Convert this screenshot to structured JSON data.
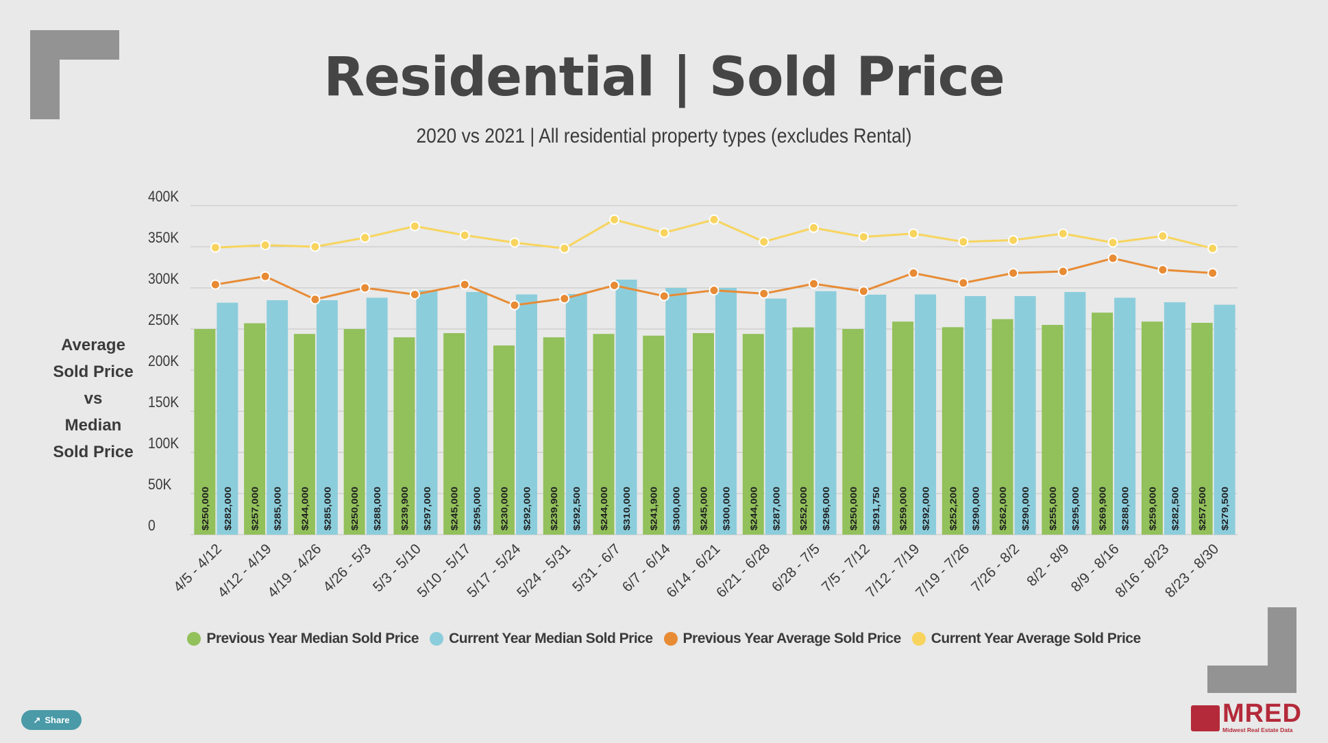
{
  "title": "Residential | Sold Price",
  "subtitle": "2020 vs 2021 | All residential property types (excludes Rental)",
  "ylabel_lines": [
    "Average",
    "Sold Price",
    "vs",
    "Median",
    "Sold Price"
  ],
  "share_label": "Share",
  "logo": {
    "text": "MRED",
    "sub": "Midwest Real Estate Data"
  },
  "icons": {
    "share": "share-icon",
    "logo": "mred-logo-icon"
  },
  "colors": {
    "prev_median": "#92c05b",
    "curr_median": "#8ccddc",
    "prev_avg": "#e88b35",
    "curr_avg": "#f8d45e",
    "background": "#e8e9e8"
  },
  "chart_data": {
    "type": "bar",
    "title": "Residential | Sold Price",
    "subtitle": "2020 vs 2021 | All residential property types (excludes Rental)",
    "ylabel": "Average Sold Price vs Median Sold Price",
    "xlabel": "",
    "ylim": [
      0,
      400000
    ],
    "ytick_values": [
      0,
      50000,
      100000,
      150000,
      200000,
      250000,
      300000,
      350000,
      400000
    ],
    "ytick_labels": [
      "0",
      "50K",
      "100K",
      "150K",
      "200K",
      "250K",
      "300K",
      "350K",
      "400K"
    ],
    "grid": true,
    "legend_position": "bottom",
    "categories": [
      "4/5 - 4/12",
      "4/12 - 4/19",
      "4/19 - 4/26",
      "4/26 - 5/3",
      "5/3 - 5/10",
      "5/10 - 5/17",
      "5/17 - 5/24",
      "5/24 - 5/31",
      "5/31 - 6/7",
      "6/7 - 6/14",
      "6/14 - 6/21",
      "6/21 - 6/28",
      "6/28 - 7/5",
      "7/5 - 7/12",
      "7/12 - 7/19",
      "7/19 - 7/26",
      "7/26 - 8/2",
      "8/2 - 8/9",
      "8/9 - 8/16",
      "8/16 - 8/23",
      "8/23 - 8/30"
    ],
    "series": [
      {
        "name": "Previous Year Median Sold Price",
        "type": "bar",
        "values": [
          250000,
          257000,
          244000,
          250000,
          239900,
          245000,
          230000,
          239900,
          244000,
          241900,
          245000,
          244000,
          252000,
          250000,
          259000,
          252200,
          262000,
          255000,
          269900,
          259000,
          257500
        ],
        "labels": [
          "$250,000",
          "$257,000",
          "$244,000",
          "$250,000",
          "$239,900",
          "$245,000",
          "$230,000",
          "$239,900",
          "$244,000",
          "$241,900",
          "$245,000",
          "$244,000",
          "$252,000",
          "$250,000",
          "$259,000",
          "$252,200",
          "$262,000",
          "$255,000",
          "$269,900",
          "$259,000",
          "$257,500"
        ]
      },
      {
        "name": "Current Year Median Sold Price",
        "type": "bar",
        "values": [
          282000,
          285000,
          285000,
          288000,
          297000,
          295000,
          292000,
          292500,
          310000,
          300000,
          300000,
          287000,
          296000,
          291750,
          292000,
          290000,
          290000,
          295000,
          288000,
          282500,
          279500
        ],
        "labels": [
          "$282,000",
          "$285,000",
          "$285,000",
          "$288,000",
          "$297,000",
          "$295,000",
          "$292,000",
          "$292,500",
          "$310,000",
          "$300,000",
          "$300,000",
          "$287,000",
          "$296,000",
          "$291,750",
          "$292,000",
          "$290,000",
          "$290,000",
          "$295,000",
          "$288,000",
          "$282,500",
          "$279,500"
        ]
      },
      {
        "name": "Previous Year Average Sold Price",
        "type": "line",
        "values": [
          304000,
          314000,
          286000,
          300000,
          292000,
          304000,
          279000,
          287000,
          303000,
          290000,
          297000,
          293000,
          305000,
          296000,
          318000,
          306000,
          318000,
          320000,
          336000,
          322000,
          318000
        ]
      },
      {
        "name": "Current Year Average Sold Price",
        "type": "line",
        "values": [
          349000,
          352000,
          350000,
          361000,
          375000,
          364000,
          355000,
          348000,
          383000,
          367000,
          383000,
          356000,
          373000,
          362000,
          366000,
          356000,
          358000,
          366000,
          355000,
          363000,
          348000
        ]
      }
    ]
  }
}
